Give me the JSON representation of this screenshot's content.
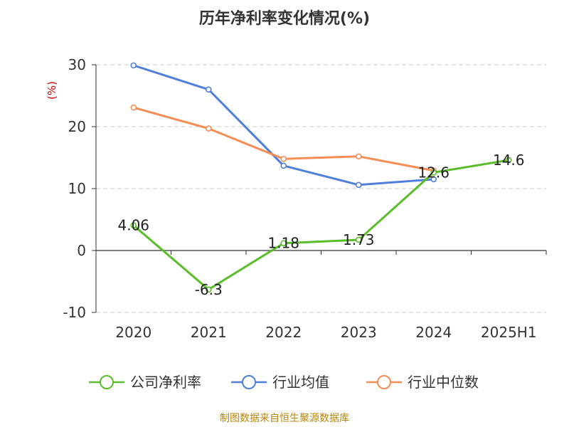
{
  "chart_data": {
    "type": "line",
    "title": "历年净利率变化情况(%)",
    "ylabel": "(%)",
    "categories": [
      "2020",
      "2021",
      "2022",
      "2023",
      "2024",
      "2025H1"
    ],
    "yticks": [
      30,
      20,
      10,
      0,
      -10
    ],
    "ylim": [
      -10,
      30
    ],
    "grid": true,
    "legend_position": "bottom",
    "series": [
      {
        "name": "公司净利率",
        "color": "#5bbd2b",
        "values": [
          4.06,
          -6.3,
          1.18,
          1.73,
          12.6,
          14.6
        ],
        "labels": [
          "4.06",
          "-6.3",
          "1.18",
          "1.73",
          "12.6",
          "14.6"
        ]
      },
      {
        "name": "行业均值",
        "color": "#4f7fd9",
        "values": [
          29.9,
          26.0,
          13.7,
          10.6,
          11.5,
          null
        ]
      },
      {
        "name": "行业中位数",
        "color": "#f58d55",
        "values": [
          23.1,
          19.7,
          14.8,
          15.2,
          12.9,
          null
        ]
      }
    ]
  },
  "source": "制图数据来自恒生聚源数据库"
}
